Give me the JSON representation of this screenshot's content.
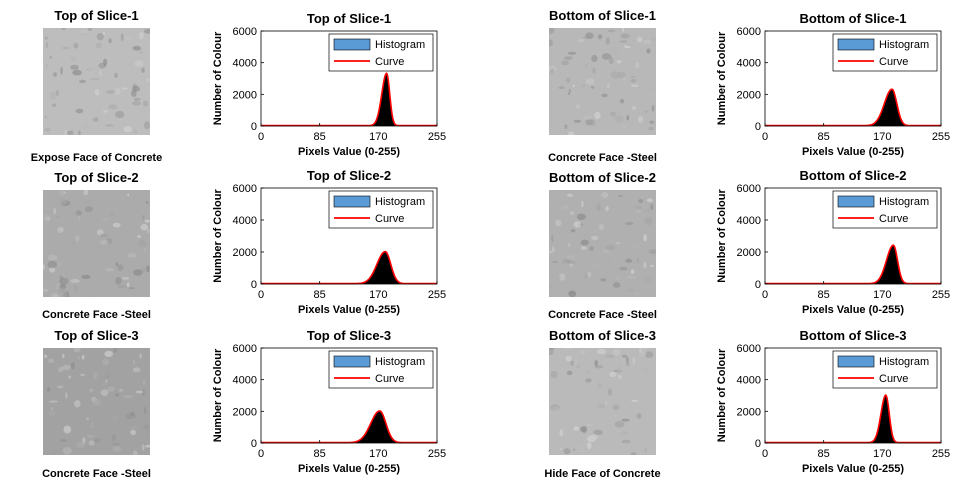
{
  "chart_data": [
    {
      "type": "area",
      "photo_title": "Top of Slice-1",
      "photo_caption": "Expose Face of Concrete",
      "title": "Top of Slice-1",
      "xlabel": "Pixels Value (0-255)",
      "ylabel": "Number of Colour",
      "xlim": [
        0,
        255
      ],
      "ylim": [
        0,
        6000
      ],
      "xticks": [
        0,
        85,
        170,
        255
      ],
      "yticks": [
        0,
        2000,
        4000,
        6000
      ],
      "legend": [
        "Histogram",
        "Curve"
      ],
      "legend_position": "top-right",
      "peak": {
        "x": 182,
        "y": 3300
      },
      "spread": [
        7,
        4.5
      ],
      "photo_tone": "#bdbdbd"
    },
    {
      "type": "area",
      "photo_title": "Bottom of Slice-1",
      "photo_caption": "Concrete Face -Steel",
      "title": "Bottom of Slice-1",
      "xlabel": "Pixels Value (0-255)",
      "ylabel": "Number of Colour",
      "xlim": [
        0,
        255
      ],
      "ylim": [
        0,
        6000
      ],
      "xticks": [
        0,
        85,
        170,
        255
      ],
      "yticks": [
        0,
        2000,
        4000,
        6000
      ],
      "legend": [
        "Histogram",
        "Curve"
      ],
      "legend_position": "top-right",
      "peak": {
        "x": 184,
        "y": 2300
      },
      "spread": [
        11,
        7
      ],
      "photo_tone": "#b8b8b8"
    },
    {
      "type": "area",
      "photo_title": "Top of Slice-2",
      "photo_caption": "Concrete Face -Steel",
      "title": "Top of Slice-2",
      "xlabel": "Pixels Value (0-255)",
      "ylabel": "Number of Colour",
      "xlim": [
        0,
        255
      ],
      "ylim": [
        0,
        6000
      ],
      "xticks": [
        0,
        85,
        170,
        255
      ],
      "yticks": [
        0,
        2000,
        4000,
        6000
      ],
      "legend": [
        "Histogram",
        "Curve"
      ],
      "legend_position": "top-right",
      "peak": {
        "x": 180,
        "y": 2000
      },
      "spread": [
        12,
        8
      ],
      "photo_tone": "#ababab"
    },
    {
      "type": "area",
      "photo_title": "Bottom of Slice-2",
      "photo_caption": "Concrete Face -Steel",
      "title": "Bottom of Slice-2",
      "xlabel": "Pixels Value (0-255)",
      "ylabel": "Number of Colour",
      "xlim": [
        0,
        255
      ],
      "ylim": [
        0,
        6000
      ],
      "xticks": [
        0,
        85,
        170,
        255
      ],
      "yticks": [
        0,
        2000,
        4000,
        6000
      ],
      "legend": [
        "Histogram",
        "Curve"
      ],
      "legend_position": "top-right",
      "peak": {
        "x": 186,
        "y": 2400
      },
      "spread": [
        10,
        6
      ],
      "photo_tone": "#b0b0b0"
    },
    {
      "type": "area",
      "photo_title": "Top of Slice-3",
      "photo_caption": "Concrete Face -Steel",
      "title": "Top of Slice-3",
      "xlabel": "Pixels Value (0-255)",
      "ylabel": "Number of Colour",
      "xlim": [
        0,
        255
      ],
      "ylim": [
        0,
        6000
      ],
      "xticks": [
        0,
        85,
        170,
        255
      ],
      "yticks": [
        0,
        2000,
        4000,
        6000
      ],
      "legend": [
        "Histogram",
        "Curve"
      ],
      "legend_position": "top-right",
      "peak": {
        "x": 172,
        "y": 2000
      },
      "spread": [
        13,
        9
      ],
      "photo_tone": "#a2a2a2"
    },
    {
      "type": "area",
      "photo_title": "Bottom of Slice-3",
      "photo_caption": "Hide Face of Concrete",
      "title": "Bottom of Slice-3",
      "xlabel": "Pixels Value (0-255)",
      "ylabel": "Number of Colour",
      "xlim": [
        0,
        255
      ],
      "ylim": [
        0,
        6000
      ],
      "xticks": [
        0,
        85,
        170,
        255
      ],
      "yticks": [
        0,
        2000,
        4000,
        6000
      ],
      "legend": [
        "Histogram",
        "Curve"
      ],
      "legend_position": "top-right",
      "peak": {
        "x": 175,
        "y": 3000
      },
      "spread": [
        7,
        5
      ],
      "photo_tone": "#bababa"
    }
  ],
  "colors": {
    "histogram_fill": "#000000",
    "histogram_legend_fill": "#5b9bd5",
    "curve": "#ff0000",
    "axis": "#000000"
  }
}
